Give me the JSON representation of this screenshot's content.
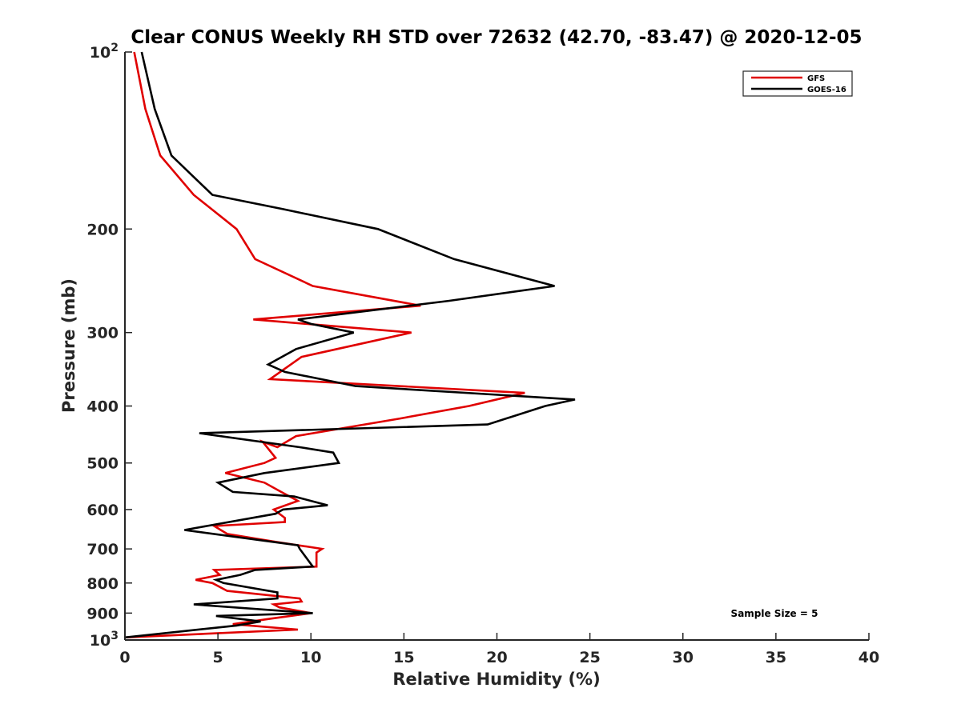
{
  "chart_data": {
    "type": "line",
    "title": "Clear CONUS Weekly RH STD over 72632 (42.70, -83.47) @ 2020-12-05",
    "xlabel": "Relative Humidity (%)",
    "ylabel": "Pressure (mb)",
    "xlim": [
      0,
      40
    ],
    "ylim": [
      100,
      1000
    ],
    "y_scale": "log",
    "y_reversed": true,
    "grid": false,
    "legend_position": "top-right",
    "x_ticks": [
      "0",
      "5",
      "10",
      "15",
      "20",
      "25",
      "30",
      "35",
      "40"
    ],
    "y_ticks": [
      {
        "value": 100,
        "label": "10",
        "exp": "2"
      },
      {
        "value": 200,
        "label": "200"
      },
      {
        "value": 300,
        "label": "300"
      },
      {
        "value": 400,
        "label": "400"
      },
      {
        "value": 500,
        "label": "500"
      },
      {
        "value": 600,
        "label": "600"
      },
      {
        "value": 700,
        "label": "700"
      },
      {
        "value": 800,
        "label": "800"
      },
      {
        "value": 900,
        "label": "900"
      },
      {
        "value": 1000,
        "label": "10",
        "exp": "3"
      }
    ],
    "annotation": "Sample Size = 5",
    "series": [
      {
        "name": "GFS",
        "color": "#e00000",
        "points": [
          [
            0.5,
            100
          ],
          [
            1.1,
            125
          ],
          [
            1.9,
            150
          ],
          [
            3.7,
            175
          ],
          [
            6.0,
            200
          ],
          [
            7.0,
            225
          ],
          [
            10.1,
            250
          ],
          [
            15.9,
            270
          ],
          [
            6.9,
            285
          ],
          [
            15.4,
            300
          ],
          [
            9.5,
            330
          ],
          [
            7.8,
            360
          ],
          [
            21.5,
            380
          ],
          [
            18.5,
            400
          ],
          [
            14.8,
            420
          ],
          [
            9.2,
            450
          ],
          [
            8.2,
            470
          ],
          [
            7.4,
            460
          ],
          [
            8.1,
            490
          ],
          [
            7.5,
            500
          ],
          [
            5.4,
            520
          ],
          [
            7.5,
            540
          ],
          [
            8.4,
            560
          ],
          [
            9.3,
            580
          ],
          [
            8.0,
            600
          ],
          [
            8.6,
            620
          ],
          [
            8.6,
            630
          ],
          [
            4.8,
            640
          ],
          [
            5.5,
            660
          ],
          [
            8.0,
            680
          ],
          [
            10.6,
            700
          ],
          [
            10.3,
            710
          ],
          [
            10.3,
            750
          ],
          [
            4.8,
            760
          ],
          [
            5.1,
            775
          ],
          [
            3.8,
            790
          ],
          [
            4.7,
            800
          ],
          [
            5.5,
            825
          ],
          [
            9.4,
            850
          ],
          [
            9.5,
            860
          ],
          [
            8.0,
            870
          ],
          [
            8.3,
            880
          ],
          [
            10.0,
            900
          ],
          [
            7.8,
            920
          ],
          [
            5.8,
            940
          ],
          [
            9.3,
            960
          ],
          [
            0.0,
            990
          ]
        ]
      },
      {
        "name": "GOES-16",
        "color": "#000000",
        "points": [
          [
            0.9,
            100
          ],
          [
            1.6,
            125
          ],
          [
            2.5,
            150
          ],
          [
            4.7,
            175
          ],
          [
            8.5,
            185
          ],
          [
            13.6,
            200
          ],
          [
            17.7,
            225
          ],
          [
            23.1,
            250
          ],
          [
            17.4,
            265
          ],
          [
            9.3,
            285
          ],
          [
            10.0,
            290
          ],
          [
            12.3,
            300
          ],
          [
            9.2,
            320
          ],
          [
            7.7,
            340
          ],
          [
            8.6,
            350
          ],
          [
            12.4,
            370
          ],
          [
            24.2,
            390
          ],
          [
            22.6,
            400
          ],
          [
            19.5,
            430
          ],
          [
            4.0,
            445
          ],
          [
            9.4,
            470
          ],
          [
            11.2,
            480
          ],
          [
            11.5,
            500
          ],
          [
            7.5,
            520
          ],
          [
            5.0,
            540
          ],
          [
            5.8,
            560
          ],
          [
            9.1,
            570
          ],
          [
            10.9,
            590
          ],
          [
            8.5,
            600
          ],
          [
            8.1,
            610
          ],
          [
            4.4,
            640
          ],
          [
            3.2,
            650
          ],
          [
            9.3,
            690
          ],
          [
            9.4,
            700
          ],
          [
            10.1,
            750
          ],
          [
            7.0,
            760
          ],
          [
            6.2,
            775
          ],
          [
            4.9,
            790
          ],
          [
            5.3,
            800
          ],
          [
            8.2,
            830
          ],
          [
            8.2,
            850
          ],
          [
            3.7,
            870
          ],
          [
            10.1,
            900
          ],
          [
            4.9,
            910
          ],
          [
            7.3,
            930
          ],
          [
            6.0,
            945
          ],
          [
            0.0,
            990
          ]
        ]
      }
    ]
  }
}
